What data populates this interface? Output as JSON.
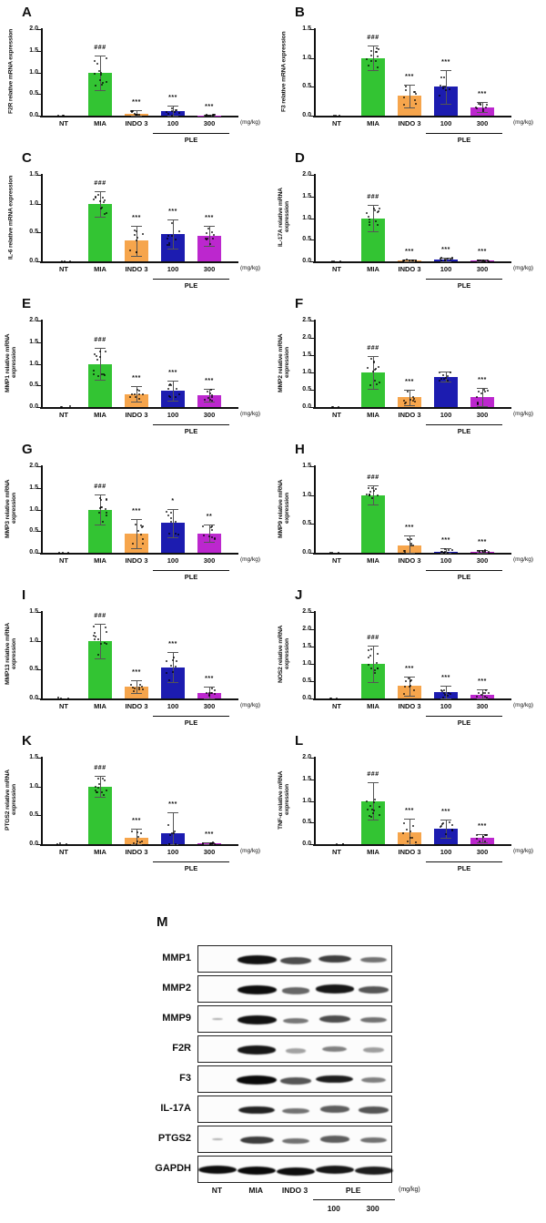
{
  "figure": {
    "unit_label": "(mg/kg)",
    "categories": [
      "NT",
      "MIA",
      "INDO 3",
      "100",
      "300"
    ],
    "group_label": "PLE",
    "bar_colors": [
      "#000000",
      "#33c433",
      "#f6a54c",
      "#1c1cb0",
      "#bc27ce"
    ],
    "axis_color": "#111111",
    "error_color": "#555555"
  },
  "chart_data": [
    {
      "type": "bar",
      "panel": "A",
      "ylabel": "F2R relative mRNA expression",
      "ylim": [
        0,
        2.0
      ],
      "ytick_labels": [
        "0.0",
        "0.5",
        "1.0",
        "1.5",
        "2.0"
      ],
      "values": [
        0,
        1.0,
        0.05,
        0.1,
        0.01
      ],
      "errors": [
        0.01,
        0.4,
        0.07,
        0.13,
        0.02
      ],
      "annotations": [
        "",
        "###",
        "***",
        "***",
        "***"
      ]
    },
    {
      "type": "bar",
      "panel": "B",
      "ylabel": "F3 relative mRNA expression",
      "ylim": [
        0,
        1.5
      ],
      "ytick_labels": [
        "0.0",
        "0.5",
        "1.0",
        "1.5"
      ],
      "values": [
        0,
        1.0,
        0.34,
        0.5,
        0.15
      ],
      "errors": [
        0.01,
        0.21,
        0.2,
        0.29,
        0.08
      ],
      "annotations": [
        "",
        "###",
        "***",
        "***",
        "***"
      ]
    },
    {
      "type": "bar",
      "panel": "C",
      "ylabel": "IL-6 relative mRNA expression",
      "ylim": [
        0,
        1.5
      ],
      "ytick_labels": [
        "0.0",
        "0.5",
        "1.0",
        "1.5"
      ],
      "values": [
        0,
        1.0,
        0.36,
        0.47,
        0.44
      ],
      "errors": [
        0.01,
        0.22,
        0.26,
        0.25,
        0.17
      ],
      "annotations": [
        "",
        "###",
        "***",
        "***",
        "***"
      ]
    },
    {
      "type": "bar",
      "panel": "D",
      "ylabel": "IL-17A relative mRNA expression",
      "ylim": [
        0,
        2.0
      ],
      "ytick_labels": [
        "0.0",
        "0.5",
        "1.0",
        "1.5",
        "2.0"
      ],
      "values": [
        0,
        1.0,
        0.02,
        0.05,
        0.02
      ],
      "errors": [
        0.01,
        0.31,
        0.02,
        0.04,
        0.02
      ],
      "annotations": [
        "",
        "###",
        "***",
        "***",
        "***"
      ]
    },
    {
      "type": "bar",
      "panel": "E",
      "ylabel": "MMP1 relative mRNA expression",
      "ylim": [
        0,
        2.0
      ],
      "ytick_labels": [
        "0.0",
        "0.5",
        "1.0",
        "1.5",
        "2.0"
      ],
      "values": [
        0,
        1.0,
        0.3,
        0.38,
        0.27
      ],
      "errors": [
        0.01,
        0.36,
        0.18,
        0.24,
        0.15
      ],
      "annotations": [
        "",
        "###",
        "***",
        "***",
        "***"
      ]
    },
    {
      "type": "bar",
      "panel": "F",
      "ylabel": "MMP2 relative mRNA expression",
      "ylim": [
        0,
        2.5
      ],
      "ytick_labels": [
        "0.0",
        "0.5",
        "1.0",
        "1.5",
        "2.0",
        "2.5"
      ],
      "values": [
        0,
        1.0,
        0.28,
        0.88,
        0.28
      ],
      "errors": [
        0.01,
        0.48,
        0.22,
        0.15,
        0.26
      ],
      "annotations": [
        "",
        "###",
        "***",
        "",
        "***"
      ]
    },
    {
      "type": "bar",
      "panel": "G",
      "ylabel": "MMP3 relative mRNA expression",
      "ylim": [
        0,
        2.0
      ],
      "ytick_labels": [
        "0.0",
        "0.5",
        "1.0",
        "1.5",
        "2.0"
      ],
      "values": [
        0,
        1.0,
        0.44,
        0.69,
        0.45
      ],
      "errors": [
        0.01,
        0.34,
        0.33,
        0.33,
        0.2
      ],
      "annotations": [
        "",
        "###",
        "***",
        "*",
        "**"
      ]
    },
    {
      "type": "bar",
      "panel": "H",
      "ylabel": "MMP9 relative mRNA expression",
      "ylim": [
        0,
        1.5
      ],
      "ytick_labels": [
        "0.0",
        "0.5",
        "1.0",
        "1.5"
      ],
      "values": [
        0,
        1.0,
        0.12,
        0.02,
        0.02
      ],
      "errors": [
        0.01,
        0.17,
        0.18,
        0.06,
        0.03
      ],
      "annotations": [
        "",
        "###",
        "***",
        "***",
        "***"
      ]
    },
    {
      "type": "bar",
      "panel": "I",
      "ylabel": "MMP13 relative mRNA expression",
      "ylim": [
        0,
        1.5
      ],
      "ytick_labels": [
        "0.0",
        "0.5",
        "1.0",
        "1.5"
      ],
      "values": [
        0,
        1.0,
        0.21,
        0.54,
        0.1
      ],
      "errors": [
        0.01,
        0.3,
        0.11,
        0.26,
        0.1
      ],
      "annotations": [
        "",
        "###",
        "***",
        "***",
        "***"
      ]
    },
    {
      "type": "bar",
      "panel": "J",
      "ylabel": "NOS2 relative mRNA expression",
      "ylim": [
        0,
        2.5
      ],
      "ytick_labels": [
        "0.0",
        "0.5",
        "1.0",
        "1.5",
        "2.0",
        "2.5"
      ],
      "values": [
        0,
        1.0,
        0.36,
        0.19,
        0.11
      ],
      "errors": [
        0.01,
        0.52,
        0.27,
        0.19,
        0.16
      ],
      "annotations": [
        "",
        "###",
        "***",
        "***",
        "***"
      ]
    },
    {
      "type": "bar",
      "panel": "K",
      "ylabel": "PTGS2 relative mRNA expression",
      "ylim": [
        0,
        1.5
      ],
      "ytick_labels": [
        "0.0",
        "0.5",
        "1.0",
        "1.5"
      ],
      "values": [
        0,
        1.0,
        0.11,
        0.19,
        0.01
      ],
      "errors": [
        0.01,
        0.18,
        0.16,
        0.37,
        0.02
      ],
      "annotations": [
        "",
        "###",
        "***",
        "***",
        "***"
      ]
    },
    {
      "type": "bar",
      "panel": "L",
      "ylabel": "TNF-α relative mRNA expression",
      "ylim": [
        0,
        2.0
      ],
      "ytick_labels": [
        "0.0",
        "0.5",
        "1.0",
        "1.5",
        "2.0"
      ],
      "values": [
        0,
        1.0,
        0.28,
        0.36,
        0.14
      ],
      "errors": [
        0.01,
        0.43,
        0.3,
        0.21,
        0.1
      ],
      "annotations": [
        "",
        "###",
        "***",
        "***",
        "***"
      ]
    }
  ],
  "blot": {
    "panel": "M",
    "lane_labels": [
      "NT",
      "MIA",
      "INDO 3"
    ],
    "group_label": "PLE",
    "dose_labels": [
      "100",
      "300"
    ],
    "unit_label": "(mg/kg)",
    "rows": [
      {
        "label": "MMP1",
        "band_intensities": [
          0,
          0.95,
          0.6,
          0.68,
          0.38
        ]
      },
      {
        "label": "MMP2",
        "band_intensities": [
          0,
          0.97,
          0.45,
          0.92,
          0.55
        ]
      },
      {
        "label": "MMP9",
        "band_intensities": [
          0.06,
          0.95,
          0.35,
          0.6,
          0.38
        ]
      },
      {
        "label": "F2R",
        "band_intensities": [
          0,
          0.92,
          0.1,
          0.3,
          0.12
        ]
      },
      {
        "label": "F3",
        "band_intensities": [
          0,
          1.0,
          0.55,
          0.88,
          0.3
        ]
      },
      {
        "label": "IL-17A",
        "band_intensities": [
          0,
          0.85,
          0.38,
          0.5,
          0.55
        ]
      },
      {
        "label": "PTGS2",
        "band_intensities": [
          0.04,
          0.7,
          0.38,
          0.5,
          0.38
        ]
      },
      {
        "label": "GAPDH",
        "band_intensities": [
          0.97,
          1.0,
          0.97,
          0.92,
          0.88
        ]
      }
    ]
  }
}
